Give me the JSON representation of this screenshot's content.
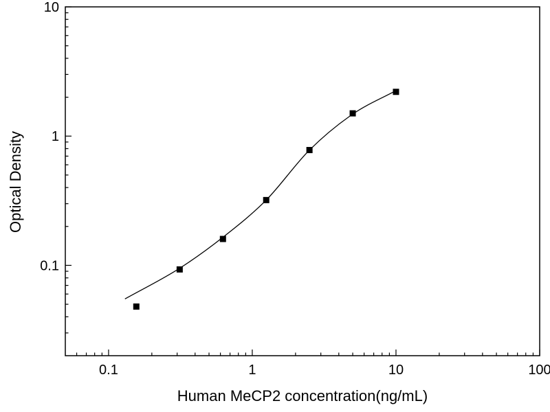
{
  "figure": {
    "title": "",
    "xlabel": "Human MeCP2 concentration(ng/mL)",
    "ylabel": "Optical Density"
  },
  "chart_data": {
    "type": "scatter",
    "title": "",
    "xlabel": "Human MeCP2 concentration(ng/mL)",
    "ylabel": "Optical Density",
    "x_scale": "log",
    "y_scale": "log",
    "xlim": [
      0.05,
      100
    ],
    "ylim": [
      0.02,
      10
    ],
    "x_tick_labels": [
      0.1,
      1,
      10,
      100
    ],
    "y_tick_labels": [
      0.1,
      1,
      10
    ],
    "grid": false,
    "legend": false,
    "marker_color": "#000000",
    "line_color": "#000000",
    "series": [
      {
        "name": "standard-data-points",
        "style": "marker-square",
        "x": [
          0.156,
          0.3125,
          0.625,
          1.25,
          2.5,
          5,
          10
        ],
        "y": [
          0.048,
          0.093,
          0.16,
          0.32,
          0.78,
          1.5,
          2.2
        ]
      },
      {
        "name": "fitted-curve",
        "style": "line-smooth",
        "x": [
          0.13,
          0.3125,
          0.625,
          1.25,
          2.5,
          5,
          10
        ],
        "y": [
          0.055,
          0.095,
          0.165,
          0.32,
          0.78,
          1.48,
          2.25
        ]
      }
    ]
  }
}
